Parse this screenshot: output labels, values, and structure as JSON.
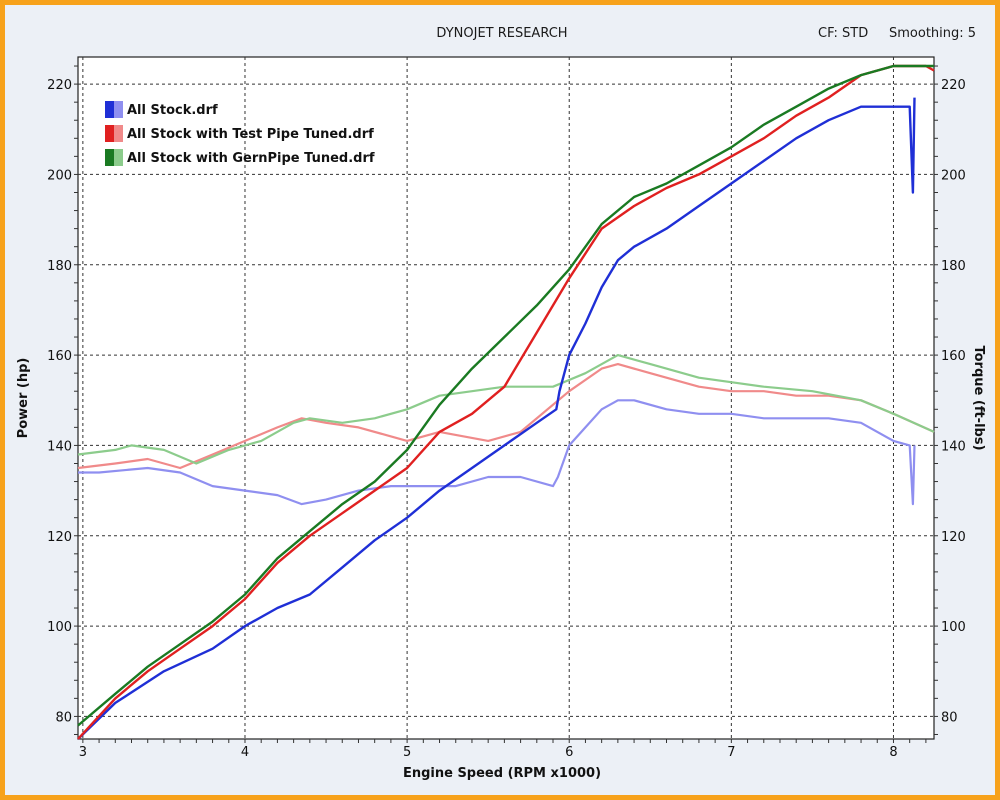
{
  "header": {
    "title": "DYNOJET RESEARCH",
    "cf": "CF: STD",
    "smoothing": "Smoothing: 5"
  },
  "chart_data": {
    "type": "line",
    "title": "DYNOJET RESEARCH",
    "xlabel": "Engine Speed (RPM x1000)",
    "ylabel_left": "Power (hp)",
    "ylabel_right": "Torque (ft-lbs)",
    "xlim": [
      2.97,
      8.25
    ],
    "ylim": [
      75,
      226
    ],
    "x_ticks": [
      3,
      4,
      5,
      6,
      7,
      8
    ],
    "y_ticks": [
      80,
      100,
      120,
      140,
      160,
      180,
      200,
      220
    ],
    "grid": true,
    "legend_position": "top-left",
    "series": [
      {
        "name": "All Stock.drf",
        "metric": "power",
        "color": "#1f2fd6",
        "points": [
          [
            2.97,
            75
          ],
          [
            3.2,
            83
          ],
          [
            3.5,
            90
          ],
          [
            3.8,
            95
          ],
          [
            4.0,
            100
          ],
          [
            4.2,
            104
          ],
          [
            4.4,
            107
          ],
          [
            4.6,
            113
          ],
          [
            4.8,
            119
          ],
          [
            5.0,
            124
          ],
          [
            5.2,
            130
          ],
          [
            5.4,
            135
          ],
          [
            5.6,
            140
          ],
          [
            5.8,
            145
          ],
          [
            5.92,
            148
          ],
          [
            5.94,
            152
          ],
          [
            6.0,
            160
          ],
          [
            6.1,
            167
          ],
          [
            6.2,
            175
          ],
          [
            6.3,
            181
          ],
          [
            6.4,
            184
          ],
          [
            6.6,
            188
          ],
          [
            6.8,
            193
          ],
          [
            7.0,
            198
          ],
          [
            7.2,
            203
          ],
          [
            7.4,
            208
          ],
          [
            7.6,
            212
          ],
          [
            7.8,
            215
          ],
          [
            8.0,
            215
          ],
          [
            8.1,
            215
          ],
          [
            8.12,
            196
          ],
          [
            8.13,
            217
          ]
        ]
      },
      {
        "name": "All Stock with Test Pipe Tuned.drf",
        "metric": "power",
        "color": "#e02020",
        "points": [
          [
            2.97,
            75
          ],
          [
            3.2,
            84
          ],
          [
            3.4,
            90
          ],
          [
            3.6,
            95
          ],
          [
            3.8,
            100
          ],
          [
            4.0,
            106
          ],
          [
            4.2,
            114
          ],
          [
            4.4,
            120
          ],
          [
            4.6,
            125
          ],
          [
            4.8,
            130
          ],
          [
            5.0,
            135
          ],
          [
            5.2,
            143
          ],
          [
            5.4,
            147
          ],
          [
            5.6,
            153
          ],
          [
            5.8,
            165
          ],
          [
            6.0,
            177
          ],
          [
            6.2,
            188
          ],
          [
            6.4,
            193
          ],
          [
            6.6,
            197
          ],
          [
            6.8,
            200
          ],
          [
            7.0,
            204
          ],
          [
            7.2,
            208
          ],
          [
            7.4,
            213
          ],
          [
            7.6,
            217
          ],
          [
            7.8,
            222
          ],
          [
            8.0,
            224
          ],
          [
            8.1,
            224
          ],
          [
            8.2,
            224
          ],
          [
            8.25,
            223
          ]
        ]
      },
      {
        "name": "All Stock with GernPipe Tuned.drf",
        "metric": "power",
        "color": "#1a7a22",
        "points": [
          [
            2.97,
            78
          ],
          [
            3.2,
            85
          ],
          [
            3.4,
            91
          ],
          [
            3.6,
            96
          ],
          [
            3.8,
            101
          ],
          [
            4.0,
            107
          ],
          [
            4.2,
            115
          ],
          [
            4.4,
            121
          ],
          [
            4.6,
            127
          ],
          [
            4.8,
            132
          ],
          [
            5.0,
            139
          ],
          [
            5.2,
            149
          ],
          [
            5.4,
            157
          ],
          [
            5.6,
            164
          ],
          [
            5.8,
            171
          ],
          [
            6.0,
            179
          ],
          [
            6.2,
            189
          ],
          [
            6.4,
            195
          ],
          [
            6.6,
            198
          ],
          [
            6.8,
            202
          ],
          [
            7.0,
            206
          ],
          [
            7.2,
            211
          ],
          [
            7.4,
            215
          ],
          [
            7.6,
            219
          ],
          [
            7.8,
            222
          ],
          [
            8.0,
            224
          ],
          [
            8.2,
            224
          ],
          [
            8.25,
            224
          ]
        ]
      },
      {
        "name": "All Stock.drf",
        "metric": "torque",
        "color": "#8f8ff0",
        "points": [
          [
            2.97,
            134
          ],
          [
            3.1,
            134
          ],
          [
            3.4,
            135
          ],
          [
            3.6,
            134
          ],
          [
            3.8,
            131
          ],
          [
            4.0,
            130
          ],
          [
            4.2,
            129
          ],
          [
            4.35,
            127
          ],
          [
            4.5,
            128
          ],
          [
            4.7,
            130
          ],
          [
            4.9,
            131
          ],
          [
            5.1,
            131
          ],
          [
            5.3,
            131
          ],
          [
            5.5,
            133
          ],
          [
            5.7,
            133
          ],
          [
            5.9,
            131
          ],
          [
            5.93,
            133
          ],
          [
            6.0,
            140
          ],
          [
            6.1,
            144
          ],
          [
            6.2,
            148
          ],
          [
            6.3,
            150
          ],
          [
            6.4,
            150
          ],
          [
            6.6,
            148
          ],
          [
            6.8,
            147
          ],
          [
            7.0,
            147
          ],
          [
            7.2,
            146
          ],
          [
            7.4,
            146
          ],
          [
            7.6,
            146
          ],
          [
            7.8,
            145
          ],
          [
            8.0,
            141
          ],
          [
            8.1,
            140
          ],
          [
            8.12,
            127
          ],
          [
            8.13,
            140
          ]
        ]
      },
      {
        "name": "All Stock with Test Pipe Tuned.drf",
        "metric": "torque",
        "color": "#f08a8a",
        "points": [
          [
            2.97,
            135
          ],
          [
            3.2,
            136
          ],
          [
            3.4,
            137
          ],
          [
            3.6,
            135
          ],
          [
            3.8,
            138
          ],
          [
            4.0,
            141
          ],
          [
            4.2,
            144
          ],
          [
            4.35,
            146
          ],
          [
            4.5,
            145
          ],
          [
            4.7,
            144
          ],
          [
            5.0,
            141
          ],
          [
            5.2,
            143
          ],
          [
            5.5,
            141
          ],
          [
            5.7,
            143
          ],
          [
            6.0,
            152
          ],
          [
            6.2,
            157
          ],
          [
            6.3,
            158
          ],
          [
            6.5,
            156
          ],
          [
            6.8,
            153
          ],
          [
            7.0,
            152
          ],
          [
            7.2,
            152
          ],
          [
            7.4,
            151
          ],
          [
            7.6,
            151
          ],
          [
            7.8,
            150
          ],
          [
            8.0,
            147
          ],
          [
            8.25,
            143
          ]
        ]
      },
      {
        "name": "All Stock with GernPipe Tuned.drf",
        "metric": "torque",
        "color": "#8ccc8c",
        "points": [
          [
            2.97,
            138
          ],
          [
            3.2,
            139
          ],
          [
            3.3,
            140
          ],
          [
            3.5,
            139
          ],
          [
            3.7,
            136
          ],
          [
            3.9,
            139
          ],
          [
            4.1,
            141
          ],
          [
            4.3,
            145
          ],
          [
            4.4,
            146
          ],
          [
            4.6,
            145
          ],
          [
            4.8,
            146
          ],
          [
            5.0,
            148
          ],
          [
            5.2,
            151
          ],
          [
            5.4,
            152
          ],
          [
            5.6,
            153
          ],
          [
            5.9,
            153
          ],
          [
            6.1,
            156
          ],
          [
            6.3,
            160
          ],
          [
            6.5,
            158
          ],
          [
            6.8,
            155
          ],
          [
            7.0,
            154
          ],
          [
            7.2,
            153
          ],
          [
            7.5,
            152
          ],
          [
            7.8,
            150
          ],
          [
            8.0,
            147
          ],
          [
            8.25,
            143
          ]
        ]
      }
    ],
    "legend": [
      {
        "label": "All Stock.drf",
        "color": "#1f2fd6",
        "light": "#8f8ff0"
      },
      {
        "label": "All Stock with Test Pipe Tuned.drf",
        "color": "#e02020",
        "light": "#f08a8a"
      },
      {
        "label": "All Stock with GernPipe Tuned.drf",
        "color": "#1a7a22",
        "light": "#8ccc8c"
      }
    ]
  }
}
